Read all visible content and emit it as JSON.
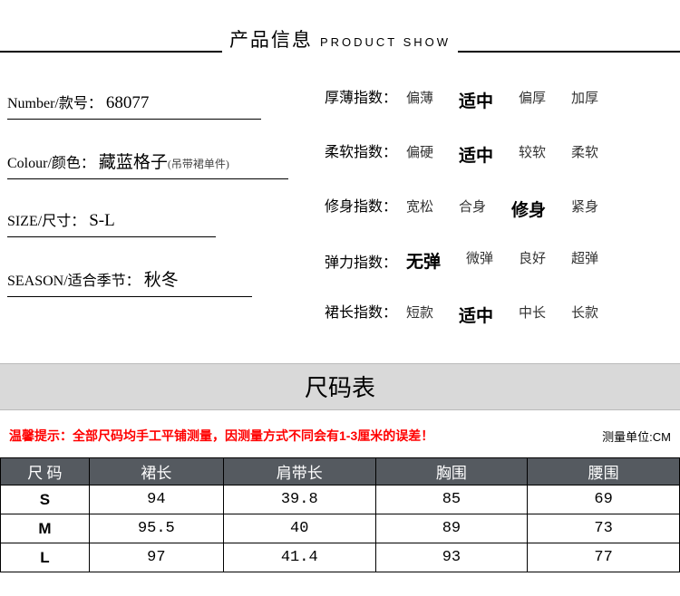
{
  "header": {
    "cn": "产品信息",
    "en": "PRODUCT SHOW"
  },
  "fields": {
    "number": {
      "label": "Number/款号：",
      "value": "68077"
    },
    "colour": {
      "label": "Colour/颜色：",
      "value": "藏蓝格子",
      "note": "(吊带裙单件)"
    },
    "size": {
      "label": "SIZE/尺寸：",
      "value": "S-L"
    },
    "season": {
      "label": "SEASON/适合季节：",
      "value": "秋冬"
    }
  },
  "indices": [
    {
      "label": "厚薄指数：",
      "opts": [
        "偏薄",
        "适中",
        "偏厚",
        "加厚"
      ],
      "selected": 1
    },
    {
      "label": "柔软指数：",
      "opts": [
        "偏硬",
        "适中",
        "较软",
        "柔软"
      ],
      "selected": 1
    },
    {
      "label": "修身指数：",
      "opts": [
        "宽松",
        "合身",
        "修身",
        "紧身"
      ],
      "selected": 2
    },
    {
      "label": "弹力指数：",
      "opts": [
        "无弹",
        "微弹",
        "良好",
        "超弹"
      ],
      "selected": 0
    },
    {
      "label": "裙长指数：",
      "opts": [
        "短款",
        "适中",
        "中长",
        "长款"
      ],
      "selected": 1
    }
  ],
  "sizeTable": {
    "title": "尺码表",
    "tip": "温馨提示：全部尺码均手工平铺测量，因测量方式不同会有1-3厘米的误差！",
    "unit": "测量单位:CM",
    "columns": [
      "尺 码",
      "裙长",
      "肩带长",
      "胸围",
      "腰围"
    ],
    "rows": [
      [
        "S",
        "94",
        "39.8",
        "85",
        "69"
      ],
      [
        "M",
        "95.5",
        "40",
        "89",
        "73"
      ],
      [
        "L",
        "97",
        "41.4",
        "93",
        "77"
      ]
    ]
  },
  "colors": {
    "tip": "#ff0000",
    "th_bg": "#555a60",
    "size_header_bg": "#d9d9d9"
  }
}
